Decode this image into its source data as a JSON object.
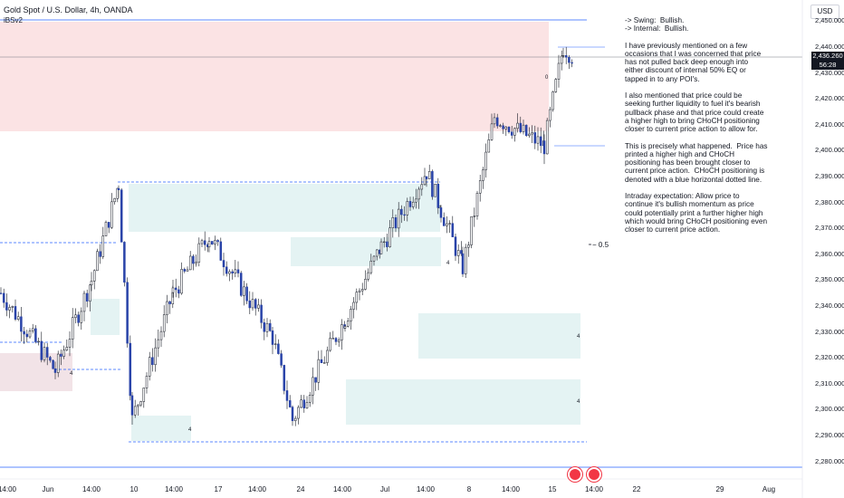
{
  "header": {
    "title": "Gold Spot / U.S. Dollar, 4h, OANDA",
    "indicator": "iBSv2"
  },
  "currency_button": "USD",
  "last_price": {
    "price": "2,436.260",
    "countdown": "56:28"
  },
  "fib_label": "− 0.5",
  "note": {
    "paragraphs": [
      "-> Swing:  Bullish.\n-> Internal:  Bullish.",
      "I have previously mentioned on a few occasions that I was concerned that price has not pulled back deep enough into either discount of internal 50% EQ or tapped in to any POI's.",
      "I also mentioned that price could be seeking further liquidity to fuel it's bearish pullback phase and that price could create a higher high to bring CHoCH positioning closer to current price action to allow for.",
      "This is precisely what happened.  Price has printed a higher high and CHoCH positioning has been brought closer to current price action.  CHoCH positioning is denoted with a blue horizontal dotted line.",
      "Intraday expectation: Allow price to continue it's bullish momentum as price could potentially print a further higher high which would bring CHoCH positioning even closer to current price action."
    ]
  },
  "chart_data": {
    "type": "candlestick",
    "title": "Gold Spot / U.S. Dollar, 4h, OANDA",
    "y_ticks": [
      "2,450.000",
      "2,440.000",
      "2,430.000",
      "2,420.000",
      "2,410.000",
      "2,400.000",
      "2,390.000",
      "2,380.000",
      "2,370.000",
      "2,360.000",
      "2,350.000",
      "2,340.000",
      "2,330.000",
      "2,320.000",
      "2,310.000",
      "2,300.000",
      "2,290.000",
      "2,280.000"
    ],
    "y_tick_values": [
      2450,
      2440,
      2430,
      2420,
      2410,
      2400,
      2390,
      2380,
      2370,
      2360,
      2350,
      2340,
      2330,
      2320,
      2310,
      2300,
      2290,
      2280
    ],
    "ylim": [
      2277,
      2454
    ],
    "x_ticks": [
      "14:00",
      "Jun",
      "14:00",
      "10",
      "14:00",
      "17",
      "14:00",
      "24",
      "14:00",
      "Jul",
      "14:00",
      "8",
      "14:00",
      "15",
      "14:00",
      "22",
      "29",
      "Aug"
    ],
    "x_tick_positions": [
      8,
      53,
      101,
      148,
      192,
      241,
      284,
      332,
      378,
      425,
      470,
      518,
      564,
      610,
      656,
      703,
      795,
      849
    ],
    "key_points": [
      {
        "time": "start",
        "price": 2345
      },
      {
        "time": "Jun",
        "price": 2315
      },
      {
        "time": "Jun 14:00",
        "price": 2350
      },
      {
        "time": "Jun 7",
        "price": 2387
      },
      {
        "time": "10",
        "price": 2296
      },
      {
        "time": "14:00",
        "price": 2345
      },
      {
        "time": "Jun 20",
        "price": 2367
      },
      {
        "time": "24",
        "price": 2328
      },
      {
        "time": "Jun 26",
        "price": 2296
      },
      {
        "time": "Jul",
        "price": 2335
      },
      {
        "time": "14:00",
        "price": 2363
      },
      {
        "time": "8",
        "price": 2392
      },
      {
        "time": "Jul 10",
        "price": 2355
      },
      {
        "time": "Jul 12",
        "price": 2413
      },
      {
        "time": "Jul 15",
        "price": 2402
      },
      {
        "time": "Jul 16",
        "price": 2440
      },
      {
        "time": "last",
        "price": 2436.26
      }
    ],
    "zone_labels": [
      "4",
      "4",
      "4",
      "4",
      "4",
      "4"
    ],
    "swing_label": "0"
  }
}
